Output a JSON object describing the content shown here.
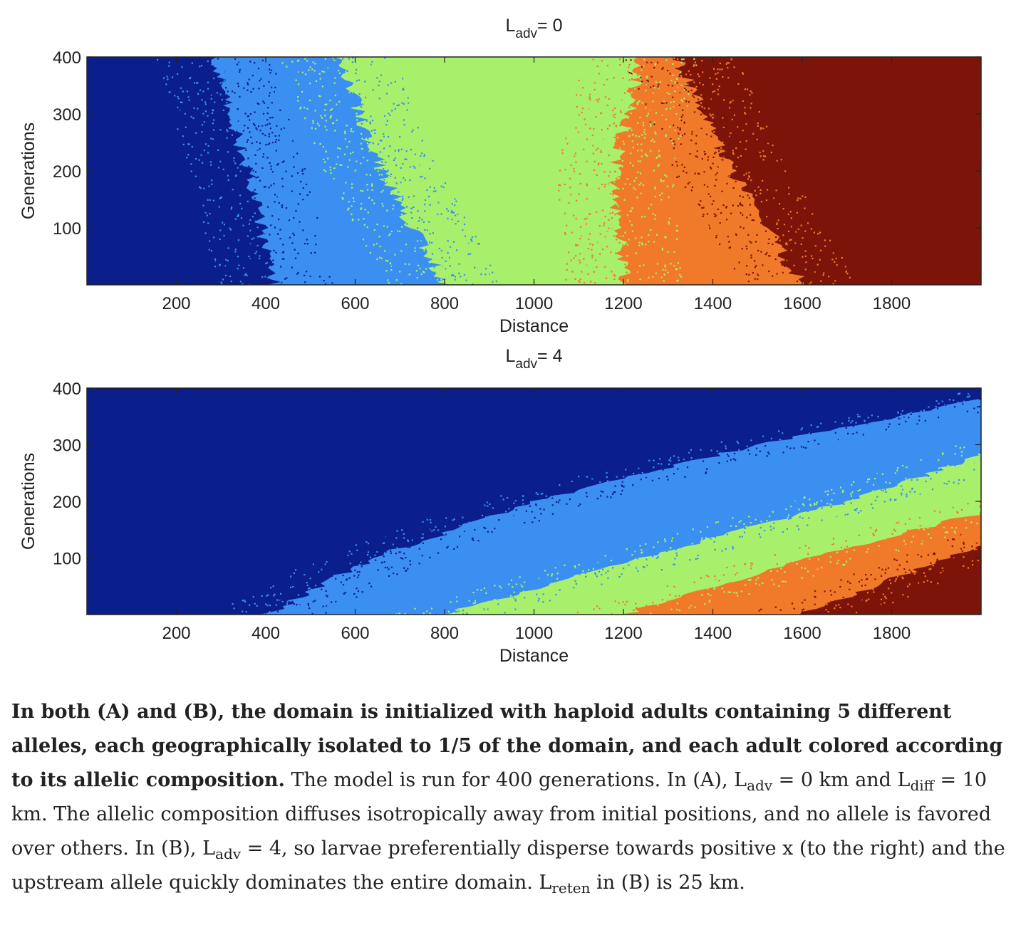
{
  "chart_data": [
    {
      "type": "heatmap",
      "title_base": "L",
      "title_sub": "adv",
      "title_rest": "= 0",
      "xlabel": "Distance",
      "ylabel": "Generations",
      "xlim": [
        0,
        2000
      ],
      "ylim": [
        0,
        400
      ],
      "xticks": [
        200,
        400,
        600,
        800,
        1000,
        1200,
        1400,
        1600,
        1800
      ],
      "yticks": [
        100,
        200,
        300,
        400
      ],
      "allele_colors": [
        "#0a1e8c",
        "#3b8ff0",
        "#a8f06c",
        "#f07a2a",
        "#7d1409"
      ],
      "boundaries": [
        [
          [
            0,
            420
          ],
          [
            200,
            360
          ],
          [
            400,
            280
          ]
        ],
        [
          [
            0,
            800
          ],
          [
            200,
            660
          ],
          [
            400,
            560
          ]
        ],
        [
          [
            0,
            1200
          ],
          [
            200,
            1180
          ],
          [
            400,
            1240
          ]
        ],
        [
          [
            0,
            1600
          ],
          [
            200,
            1440
          ],
          [
            400,
            1320
          ]
        ]
      ]
    },
    {
      "type": "heatmap",
      "title_base": "L",
      "title_sub": "adv",
      "title_rest": "= 4",
      "xlabel": "Distance",
      "ylabel": "Generations",
      "xlim": [
        0,
        2000
      ],
      "ylim": [
        0,
        400
      ],
      "xticks": [
        200,
        400,
        600,
        800,
        1000,
        1200,
        1400,
        1600,
        1800
      ],
      "yticks": [
        100,
        200,
        300,
        400
      ],
      "allele_colors": [
        "#0a1e8c",
        "#3b8ff0",
        "#a8f06c",
        "#f07a2a",
        "#7d1409"
      ],
      "boundaries": [
        [
          [
            0,
            400
          ],
          [
            100,
            640
          ],
          [
            200,
            1000
          ],
          [
            300,
            1500
          ],
          [
            380,
            2000
          ]
        ],
        [
          [
            0,
            800
          ],
          [
            100,
            1240
          ],
          [
            200,
            1700
          ],
          [
            280,
            2000
          ]
        ],
        [
          [
            0,
            1200
          ],
          [
            100,
            1620
          ],
          [
            180,
            2000
          ]
        ],
        [
          [
            0,
            1600
          ],
          [
            80,
            1860
          ],
          [
            120,
            2000
          ]
        ]
      ]
    }
  ],
  "caption": {
    "bold": "In both (A) and (B), the domain is initialized with haploid adults containing 5 different alleles, each geographically isolated to 1/5 of the domain, and each adult colored according to its allelic composition.",
    "s1": " The model is run for 400 generations. In (A), L",
    "s1_sub": "adv",
    "s2": " = 0 km and L",
    "s2_sub": "diff",
    "s3": " = 10 km. The allelic composition diffuses isotropically away from initial positions, and no allele is favored over others. In (B), L",
    "s3_sub": "adv",
    "s4": " = 4, so larvae preferentially disperse towards positive x (to the right) and the upstream allele quickly dominates the entire domain. L",
    "s4_sub": "reten",
    "s5": " in (B) is 25 km."
  }
}
